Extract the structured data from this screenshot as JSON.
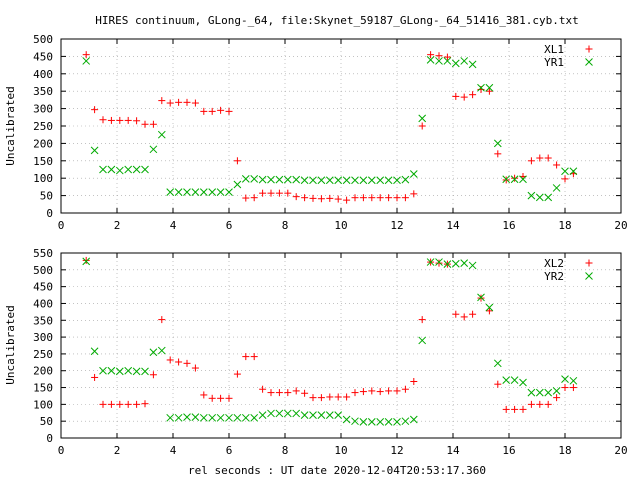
{
  "title": "HIRES continuum, GLong-_64, file:Skynet_59187_GLong-_64_51416_381.cyb.txt",
  "xlabel": "rel seconds : UT date 2020-12-04T20:53:17.360",
  "colors": {
    "series_a": "#ff0000",
    "series_b": "#00aa00",
    "axis": "#000000",
    "grid": "#a0a0a0"
  },
  "chart_data": [
    {
      "type": "scatter",
      "ylabel": "Uncalibrated",
      "xlim": [
        0,
        20
      ],
      "ylim": [
        0,
        500
      ],
      "x_ticks": [
        0,
        2,
        4,
        6,
        8,
        10,
        12,
        14,
        16,
        18,
        20
      ],
      "y_ticks": [
        0,
        50,
        100,
        150,
        200,
        250,
        300,
        350,
        400,
        450,
        500
      ],
      "grid": true,
      "legend_position": "top-right",
      "series": [
        {
          "name": "XL1",
          "marker": "plus",
          "x": [
            0.9,
            1.2,
            1.5,
            1.8,
            2.1,
            2.4,
            2.7,
            3.0,
            3.3,
            3.6,
            3.9,
            4.2,
            4.5,
            4.8,
            5.1,
            5.4,
            5.7,
            6.0,
            6.3,
            6.6,
            6.9,
            7.2,
            7.5,
            7.8,
            8.1,
            8.4,
            8.7,
            9.0,
            9.3,
            9.6,
            9.9,
            10.2,
            10.5,
            10.8,
            11.1,
            11.4,
            11.7,
            12.0,
            12.3,
            12.6,
            12.9,
            13.2,
            13.5,
            13.8,
            14.1,
            14.4,
            14.7,
            15.0,
            15.3,
            15.6,
            15.9,
            16.2,
            16.5,
            16.8,
            17.1,
            17.4,
            17.7,
            18.0,
            18.3
          ],
          "y": [
            455,
            297,
            268,
            266,
            266,
            266,
            265,
            255,
            255,
            323,
            316,
            318,
            318,
            316,
            292,
            292,
            295,
            292,
            150,
            43,
            44,
            57,
            57,
            57,
            57,
            47,
            44,
            42,
            41,
            42,
            40,
            37,
            44,
            44,
            44,
            44,
            44,
            44,
            44,
            55,
            250,
            455,
            452,
            448,
            335,
            333,
            340,
            355,
            350,
            170,
            95,
            100,
            105,
            150,
            158,
            158,
            138,
            98,
            113
          ]
        },
        {
          "name": "YR1",
          "marker": "cross",
          "x": [
            0.9,
            1.2,
            1.5,
            1.8,
            2.1,
            2.4,
            2.7,
            3.0,
            3.3,
            3.6,
            3.9,
            4.2,
            4.5,
            4.8,
            5.1,
            5.4,
            5.7,
            6.0,
            6.3,
            6.6,
            6.9,
            7.2,
            7.5,
            7.8,
            8.1,
            8.4,
            8.7,
            9.0,
            9.3,
            9.6,
            9.9,
            10.2,
            10.5,
            10.8,
            11.1,
            11.4,
            11.7,
            12.0,
            12.3,
            12.6,
            12.9,
            13.2,
            13.5,
            13.8,
            14.1,
            14.4,
            14.7,
            15.0,
            15.3,
            15.6,
            15.9,
            16.2,
            16.5,
            16.8,
            17.1,
            17.4,
            17.7,
            18.0,
            18.3
          ],
          "y": [
            437,
            180,
            125,
            125,
            122,
            125,
            125,
            125,
            183,
            225,
            60,
            60,
            60,
            60,
            60,
            60,
            60,
            60,
            82,
            98,
            98,
            96,
            96,
            96,
            96,
            96,
            94,
            94,
            94,
            94,
            94,
            94,
            94,
            94,
            94,
            94,
            94,
            94,
            96,
            112,
            272,
            440,
            437,
            437,
            430,
            437,
            427,
            360,
            360,
            200,
            97,
            97,
            97,
            50,
            45,
            45,
            72,
            120,
            120
          ]
        }
      ]
    },
    {
      "type": "scatter",
      "ylabel": "Uncalibrated",
      "xlim": [
        0,
        20
      ],
      "ylim": [
        0,
        550
      ],
      "x_ticks": [
        0,
        2,
        4,
        6,
        8,
        10,
        12,
        14,
        16,
        18,
        20
      ],
      "y_ticks": [
        0,
        50,
        100,
        150,
        200,
        250,
        300,
        350,
        400,
        450,
        500,
        550
      ],
      "grid": true,
      "legend_position": "top-right",
      "series": [
        {
          "name": "XL2",
          "marker": "plus",
          "x": [
            0.9,
            1.2,
            1.5,
            1.8,
            2.1,
            2.4,
            2.7,
            3.0,
            3.3,
            3.6,
            3.9,
            4.2,
            4.5,
            4.8,
            5.1,
            5.4,
            5.7,
            6.0,
            6.3,
            6.6,
            6.9,
            7.2,
            7.5,
            7.8,
            8.1,
            8.4,
            8.7,
            9.0,
            9.3,
            9.6,
            9.9,
            10.2,
            10.5,
            10.8,
            11.1,
            11.4,
            11.7,
            12.0,
            12.3,
            12.6,
            12.9,
            13.2,
            13.5,
            13.8,
            14.1,
            14.4,
            14.7,
            15.0,
            15.3,
            15.6,
            15.9,
            16.2,
            16.5,
            16.8,
            17.1,
            17.4,
            17.7,
            18.0,
            18.3
          ],
          "y": [
            528,
            180,
            100,
            100,
            100,
            100,
            100,
            102,
            188,
            352,
            232,
            226,
            222,
            208,
            128,
            118,
            118,
            118,
            190,
            242,
            242,
            145,
            135,
            135,
            135,
            140,
            133,
            120,
            120,
            122,
            122,
            122,
            135,
            138,
            140,
            138,
            140,
            140,
            145,
            168,
            352,
            523,
            520,
            517,
            368,
            360,
            368,
            416,
            378,
            160,
            85,
            85,
            85,
            100,
            100,
            100,
            120,
            150,
            150
          ]
        },
        {
          "name": "YR2",
          "marker": "cross",
          "x": [
            0.9,
            1.2,
            1.5,
            1.8,
            2.1,
            2.4,
            2.7,
            3.0,
            3.3,
            3.6,
            3.9,
            4.2,
            4.5,
            4.8,
            5.1,
            5.4,
            5.7,
            6.0,
            6.3,
            6.6,
            6.9,
            7.2,
            7.5,
            7.8,
            8.1,
            8.4,
            8.7,
            9.0,
            9.3,
            9.6,
            9.9,
            10.2,
            10.5,
            10.8,
            11.1,
            11.4,
            11.7,
            12.0,
            12.3,
            12.6,
            12.9,
            13.2,
            13.5,
            13.8,
            14.1,
            14.4,
            14.7,
            15.0,
            15.3,
            15.6,
            15.9,
            16.2,
            16.5,
            16.8,
            17.1,
            17.4,
            17.7,
            18.0,
            18.3
          ],
          "y": [
            525,
            258,
            200,
            200,
            198,
            200,
            198,
            198,
            255,
            260,
            60,
            60,
            62,
            62,
            60,
            60,
            60,
            60,
            60,
            60,
            60,
            68,
            73,
            73,
            73,
            73,
            68,
            68,
            68,
            68,
            68,
            55,
            50,
            48,
            48,
            48,
            48,
            48,
            50,
            55,
            290,
            523,
            523,
            517,
            518,
            520,
            513,
            418,
            388,
            222,
            172,
            172,
            165,
            135,
            135,
            135,
            140,
            175,
            170
          ]
        }
      ]
    }
  ]
}
